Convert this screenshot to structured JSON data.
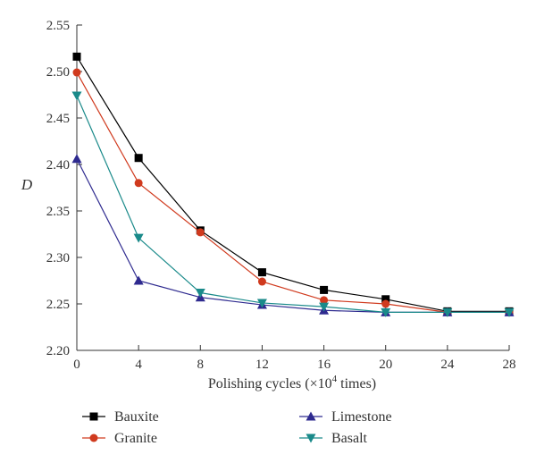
{
  "chart_data": {
    "type": "line",
    "xlabel": "Polishing cycles (×10",
    "xlabel_sup": "4",
    "xlabel_tail": " times)",
    "ylabel": "D",
    "x": [
      0,
      4,
      8,
      12,
      16,
      20,
      24,
      28
    ],
    "xlim": [
      0,
      28
    ],
    "ylim": [
      2.2,
      2.55
    ],
    "xticks": [
      "0",
      "4",
      "8",
      "12",
      "16",
      "20",
      "24",
      "28"
    ],
    "yticks": [
      "2.20",
      "2.25",
      "2.30",
      "2.35",
      "2.40",
      "2.45",
      "2.50",
      "2.55"
    ],
    "grid": false,
    "legend_position": "bottom",
    "series": [
      {
        "name": "Bauxite",
        "color": "#000000",
        "marker": "square",
        "values": [
          2.516,
          2.407,
          2.329,
          2.284,
          2.265,
          2.255,
          2.242,
          2.242
        ]
      },
      {
        "name": "Granite",
        "color": "#d03a1e",
        "marker": "circle",
        "values": [
          2.499,
          2.38,
          2.327,
          2.274,
          2.254,
          2.25,
          2.241,
          2.241
        ]
      },
      {
        "name": "Limestone",
        "color": "#2e2a8f",
        "marker": "triangle-up",
        "values": [
          2.406,
          2.275,
          2.257,
          2.249,
          2.243,
          2.241,
          2.241,
          2.241
        ]
      },
      {
        "name": "Basalt",
        "color": "#1a8a8a",
        "marker": "triangle-down",
        "values": [
          2.474,
          2.321,
          2.262,
          2.251,
          2.247,
          2.241,
          2.241,
          2.241
        ]
      }
    ]
  }
}
